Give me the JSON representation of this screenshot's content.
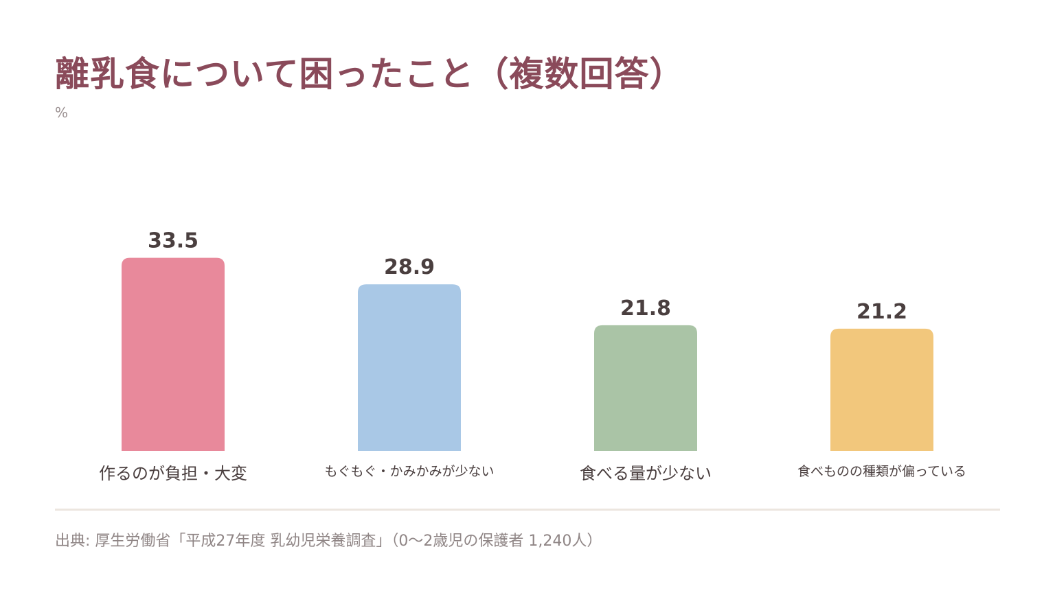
{
  "title": "離乳食について困ったこと（複数回答）",
  "unit": "%",
  "source": "出典: 厚生労働省「平成27年度 乳幼児栄養調査」（0〜2歳児の保護者 1,240人）",
  "chart_data": {
    "type": "bar",
    "title": "離乳食について困ったこと（複数回答）",
    "ylabel": "%",
    "xlabel": "",
    "categories": [
      "作るのが負担・大変",
      "もぐもぐ・かみかみが少ない",
      "食べる量が少ない",
      "食べものの種類が偏っている"
    ],
    "values": [
      33.5,
      28.9,
      21.8,
      21.2
    ],
    "value_labels": [
      "33.5",
      "28.9",
      "21.8",
      "21.2"
    ],
    "colors": [
      "#e8899b",
      "#a9c8e6",
      "#aac4a6",
      "#f2c77c"
    ],
    "grid": false,
    "legend": "none"
  }
}
